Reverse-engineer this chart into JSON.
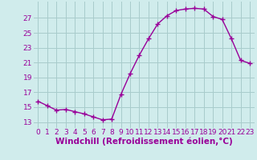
{
  "hours": [
    0,
    1,
    2,
    3,
    4,
    5,
    6,
    7,
    8,
    9,
    10,
    11,
    12,
    13,
    14,
    15,
    16,
    17,
    18,
    19,
    20,
    21,
    22,
    23
  ],
  "values": [
    15.8,
    15.2,
    14.6,
    14.7,
    14.4,
    14.1,
    13.7,
    13.3,
    13.4,
    16.7,
    19.5,
    22.0,
    24.2,
    26.2,
    27.3,
    28.0,
    28.2,
    28.3,
    28.2,
    27.2,
    26.8,
    24.2,
    21.3,
    20.9
  ],
  "line_color": "#990099",
  "marker": "+",
  "marker_size": 4,
  "marker_linewidth": 1.0,
  "bg_color": "#d0ecec",
  "grid_color": "#a8cccc",
  "xlabel": "Windchill (Refroidissement éolien,°C)",
  "xlabel_fontsize": 7.5,
  "ylabel_ticks": [
    13,
    15,
    17,
    19,
    21,
    23,
    25,
    27
  ],
  "ylim": [
    12.2,
    29.2
  ],
  "xlim": [
    -0.5,
    23.5
  ],
  "tick_fontsize": 6.5,
  "label_color": "#990099",
  "line_width": 1.0
}
